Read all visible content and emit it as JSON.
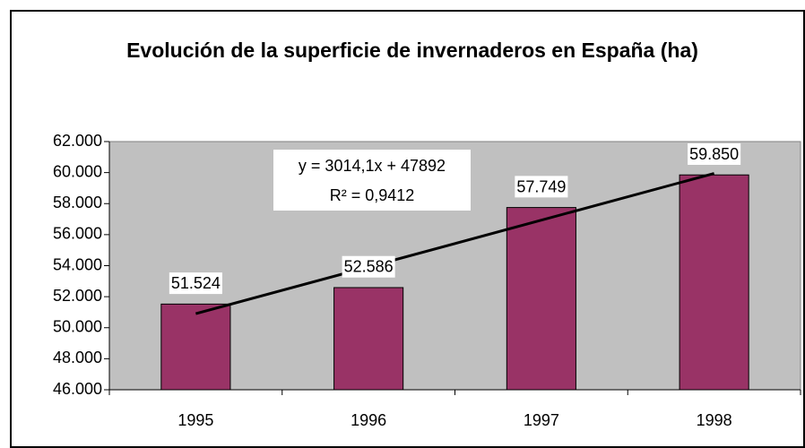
{
  "chart_data": {
    "type": "bar",
    "title": "Evolución de la superficie de invernaderos en España (ha)",
    "categories": [
      "1995",
      "1996",
      "1997",
      "1998"
    ],
    "values": [
      51524,
      52586,
      57749,
      59850
    ],
    "value_labels": [
      "51.524",
      "52.586",
      "57.749",
      "59.850"
    ],
    "color": "#993366",
    "ylim": [
      46000,
      62000
    ],
    "yticks": [
      {
        "value": 46000,
        "label": "46.000"
      },
      {
        "value": 48000,
        "label": "48.000"
      },
      {
        "value": 50000,
        "label": "50.000"
      },
      {
        "value": 52000,
        "label": "52.000"
      },
      {
        "value": 54000,
        "label": "54.000"
      },
      {
        "value": 56000,
        "label": "56.000"
      },
      {
        "value": 58000,
        "label": "58.000"
      },
      {
        "value": 60000,
        "label": "60.000"
      },
      {
        "value": 62000,
        "label": "62.000"
      }
    ],
    "plot_background": "#c0c0c0",
    "trendline": {
      "slope": 3014.1,
      "intercept": 47892,
      "label": "y = 3014,1x + 47892",
      "r2": 0.9412,
      "r2_label": "R² = 0,9412"
    }
  }
}
